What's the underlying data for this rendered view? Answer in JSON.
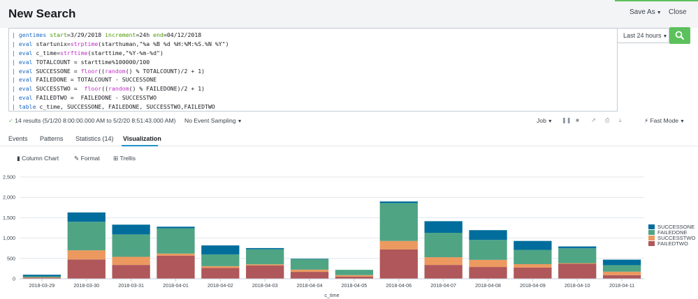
{
  "header": {
    "title": "New Search",
    "save_as": "Save As",
    "close": "Close"
  },
  "search": {
    "lines": [
      [
        {
          "t": "| ",
          "c": "pipe"
        },
        {
          "t": "gentimes",
          "c": "kw"
        },
        {
          "t": " "
        },
        {
          "t": "start",
          "c": "arg"
        },
        {
          "t": "=3/29/2018 "
        },
        {
          "t": "increment",
          "c": "arg"
        },
        {
          "t": "=24h "
        },
        {
          "t": "end",
          "c": "arg"
        },
        {
          "t": "=04/12/2018"
        }
      ],
      [
        {
          "t": "| ",
          "c": "pipe"
        },
        {
          "t": "eval",
          "c": "kw"
        },
        {
          "t": " startunix="
        },
        {
          "t": "strptime",
          "c": "fn"
        },
        {
          "t": "(starthuman,\"%a %B %d %H:%M:%S.%N %Y\")"
        }
      ],
      [
        {
          "t": "| ",
          "c": "pipe"
        },
        {
          "t": "eval",
          "c": "kw"
        },
        {
          "t": " c_time="
        },
        {
          "t": "strftime",
          "c": "fn"
        },
        {
          "t": "(starttime,\"%Y-%m-%d\")"
        }
      ],
      [
        {
          "t": "| ",
          "c": "pipe"
        },
        {
          "t": "eval",
          "c": "kw"
        },
        {
          "t": " TOTALCOUNT = starttime%100000/100"
        }
      ],
      [
        {
          "t": "| ",
          "c": "pipe"
        },
        {
          "t": "eval",
          "c": "kw"
        },
        {
          "t": " SUCCESSONE = "
        },
        {
          "t": "floor",
          "c": "fn"
        },
        {
          "t": "(("
        },
        {
          "t": "random",
          "c": "fn"
        },
        {
          "t": "() % TOTALCOUNT)/2 + 1)"
        }
      ],
      [
        {
          "t": "| ",
          "c": "pipe"
        },
        {
          "t": "eval",
          "c": "kw"
        },
        {
          "t": " FAILEDONE = TOTALCOUNT - SUCCESSONE"
        }
      ],
      [
        {
          "t": "| ",
          "c": "pipe"
        },
        {
          "t": "eval",
          "c": "kw"
        },
        {
          "t": " SUCCESSTWO =  "
        },
        {
          "t": "floor",
          "c": "fn"
        },
        {
          "t": "(("
        },
        {
          "t": "random",
          "c": "fn"
        },
        {
          "t": "() % FAILEDONE)/2 + 1)"
        }
      ],
      [
        {
          "t": "| ",
          "c": "pipe"
        },
        {
          "t": "eval",
          "c": "kw"
        },
        {
          "t": " FAILEDTWO =  FAILEDONE - SUCCESSTWO"
        }
      ],
      [
        {
          "t": "| ",
          "c": "pipe"
        },
        {
          "t": "table",
          "c": "kw"
        },
        {
          "t": " c_time, SUCCESSONE, FAILEDONE, SUCCESSTWO,FAILEDTWO"
        }
      ]
    ],
    "time_range": "Last 24 hours",
    "submit_icon": "search-icon"
  },
  "status": {
    "results": "14 results (5/1/20 8:00:00.000 AM to 5/2/20 8:51:43.000 AM)",
    "sampling": "No Event Sampling",
    "job": "Job",
    "mode": "Fast Mode"
  },
  "tabs": [
    "Events",
    "Patterns",
    "Statistics (14)",
    "Visualization"
  ],
  "viz_toolbar": {
    "chart_type": "Column Chart",
    "format": "Format",
    "trellis": "Trellis"
  },
  "colors": {
    "SUCCESSONE": "#006d9c",
    "FAILEDONE": "#4fa484",
    "SUCCESSTWO": "#ec9960",
    "FAILEDTWO": "#af575a",
    "accent_green": "#5cc05c"
  },
  "chart_data": {
    "type": "bar",
    "stacked": true,
    "categories": [
      "2018-03-29",
      "2018-03-30",
      "2018-03-31",
      "2018-04-01",
      "2018-04-02",
      "2018-04-03",
      "2018-04-04",
      "2018-04-05",
      "2018-04-06",
      "2018-04-07",
      "2018-04-08",
      "2018-04-09",
      "2018-04-10",
      "2018-04-11"
    ],
    "series": [
      {
        "name": "FAILEDTWO",
        "values": [
          25,
          475,
          340,
          570,
          265,
          325,
          170,
          55,
          720,
          340,
          290,
          275,
          370,
          90
        ]
      },
      {
        "name": "SUCCESSTWO",
        "values": [
          10,
          225,
          200,
          50,
          45,
          30,
          55,
          35,
          210,
          190,
          175,
          85,
          15,
          85
        ]
      },
      {
        "name": "FAILEDONE",
        "values": [
          25,
          700,
          550,
          620,
          290,
          370,
          260,
          130,
          930,
          600,
          490,
          350,
          365,
          160
        ]
      },
      {
        "name": "SUCCESSONE",
        "values": [
          40,
          230,
          240,
          40,
          220,
          30,
          10,
          0,
          40,
          285,
          240,
          220,
          45,
          135
        ]
      }
    ],
    "legend_order": [
      "SUCCESSONE",
      "FAILEDONE",
      "SUCCESSTWO",
      "FAILEDTWO"
    ],
    "xlabel": "c_time",
    "ylabel": "",
    "ylim": [
      0,
      2500
    ],
    "yticks": [
      "0",
      "500",
      "1,000",
      "1,500",
      "2,000",
      "2,500"
    ],
    "legend_position": "right",
    "grid": true
  }
}
